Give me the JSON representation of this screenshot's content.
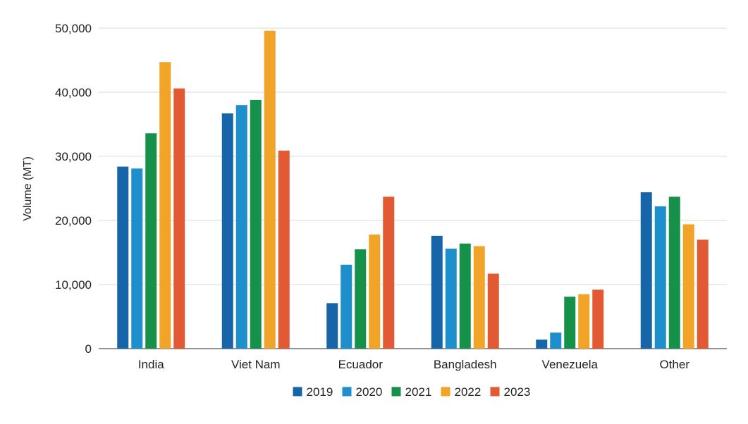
{
  "chart_data": {
    "type": "bar",
    "title": "",
    "xlabel": "",
    "ylabel": "Volume (MT)",
    "ylim": [
      0,
      50000
    ],
    "yticks": [
      0,
      10000,
      20000,
      30000,
      40000,
      50000
    ],
    "ytick_labels": [
      "0",
      "10,000",
      "20,000",
      "30,000",
      "40,000",
      "50,000"
    ],
    "grid": true,
    "legend_position": "bottom",
    "categories": [
      "India",
      "Viet Nam",
      "Ecuador",
      "Bangladesh",
      "Venezuela",
      "Other"
    ],
    "series": [
      {
        "name": "2019",
        "color": "#1565a8",
        "values": [
          28400,
          36700,
          7100,
          17600,
          1400,
          24400
        ]
      },
      {
        "name": "2020",
        "color": "#1c8fcc",
        "values": [
          28100,
          38000,
          13100,
          15600,
          2500,
          22200
        ]
      },
      {
        "name": "2021",
        "color": "#15914a",
        "values": [
          33600,
          38800,
          15500,
          16400,
          8100,
          23700
        ]
      },
      {
        "name": "2022",
        "color": "#f2a428",
        "values": [
          44700,
          49600,
          17800,
          16000,
          8500,
          19400
        ]
      },
      {
        "name": "2023",
        "color": "#e25a33",
        "values": [
          40600,
          30900,
          23700,
          11700,
          9200,
          17000
        ]
      }
    ]
  }
}
